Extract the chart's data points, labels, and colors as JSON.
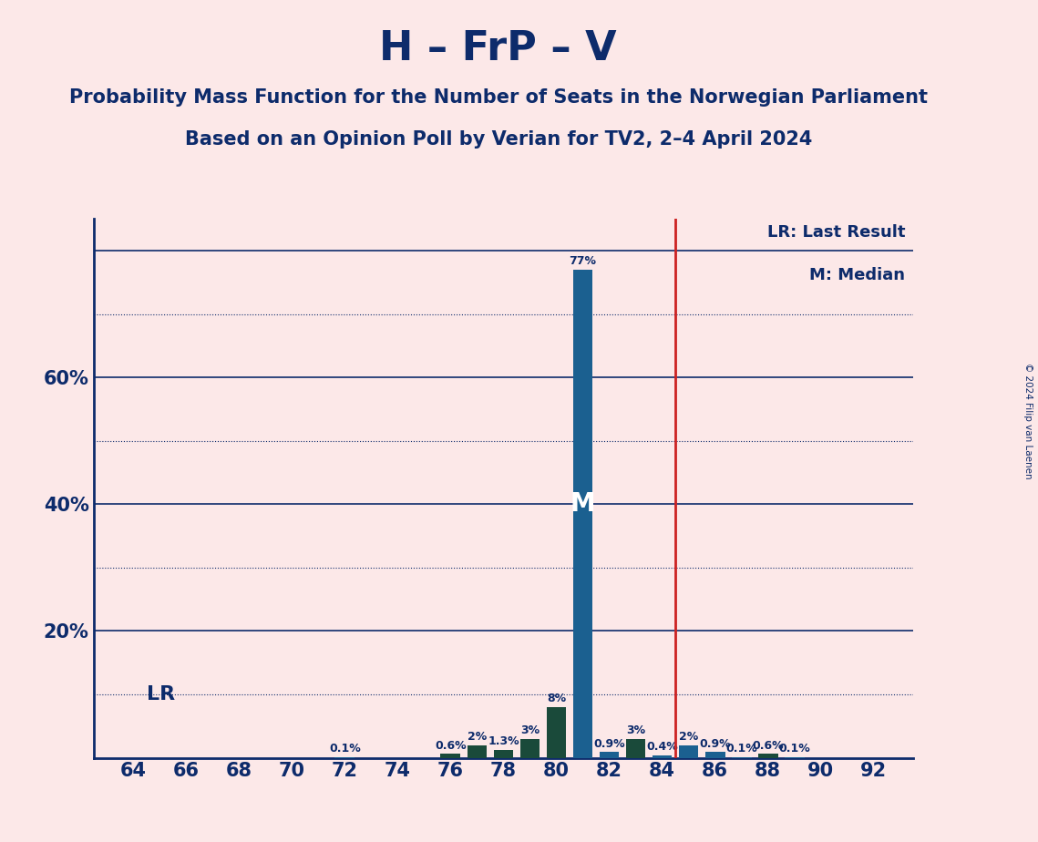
{
  "title": "H – FrP – V",
  "subtitle1": "Probability Mass Function for the Number of Seats in the Norwegian Parliament",
  "subtitle2": "Based on an Opinion Poll by Verian for TV2, 2–4 April 2024",
  "copyright": "© 2024 Filip van Laenen",
  "seats": [
    64,
    65,
    66,
    67,
    68,
    69,
    70,
    71,
    72,
    73,
    74,
    75,
    76,
    77,
    78,
    79,
    80,
    81,
    82,
    83,
    84,
    85,
    86,
    87,
    88,
    89,
    90,
    91,
    92
  ],
  "probs": [
    0.0,
    0.0,
    0.0,
    0.0,
    0.0,
    0.0,
    0.0,
    0.0,
    0.1,
    0.0,
    0.0,
    0.0,
    0.6,
    2.0,
    1.3,
    3.0,
    8.0,
    77.0,
    0.9,
    3.0,
    0.4,
    2.0,
    0.9,
    0.1,
    0.6,
    0.1,
    0.0,
    0.0,
    0.0
  ],
  "median_seat": 81,
  "lr_seat": 84.5,
  "bar_color_blue": "#1b6090",
  "bar_color_green": "#1a4a3a",
  "background_color": "#fce8e8",
  "grid_color_solid": "#0d2b6b",
  "grid_color_dotted": "#0d2b6b",
  "vline_color": "#cc2222",
  "text_color": "#0d2b6b",
  "green_seats": [
    76,
    77,
    78,
    79,
    80,
    83,
    88
  ],
  "solid_levels": [
    20,
    40,
    60,
    80
  ],
  "dotted_levels": [
    10,
    30,
    50,
    70
  ],
  "xlim": [
    62.5,
    93.5
  ],
  "ylim": [
    0,
    85
  ],
  "xticks": [
    64,
    66,
    68,
    70,
    72,
    74,
    76,
    78,
    80,
    82,
    84,
    86,
    88,
    90,
    92
  ],
  "yticks": [
    20,
    40,
    60
  ],
  "ytick_labels": [
    "20%",
    "40%",
    "60%"
  ]
}
